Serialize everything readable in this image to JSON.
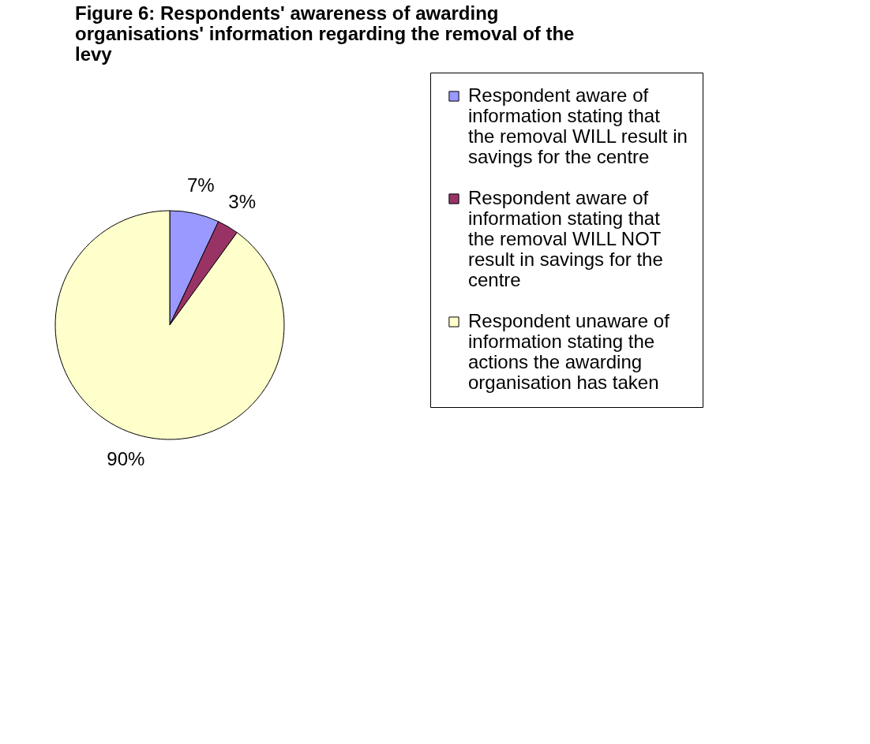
{
  "chart_data": {
    "type": "pie",
    "title": "Figure 6: Respondents' awareness of awarding organisations' information regarding the removal of the levy",
    "categories": [
      "Respondent aware of information stating that the removal WILL result in savings for the centre",
      "Respondent aware of information stating that the removal WILL NOT result in savings for the centre",
      "Respondent unaware of information stating the actions the awarding organisation has taken"
    ],
    "values": [
      7,
      3,
      90
    ],
    "colors": [
      "#9999ff",
      "#993366",
      "#ffffcc"
    ],
    "value_labels": [
      "7%",
      "3%",
      "90%"
    ],
    "legend": "right"
  }
}
